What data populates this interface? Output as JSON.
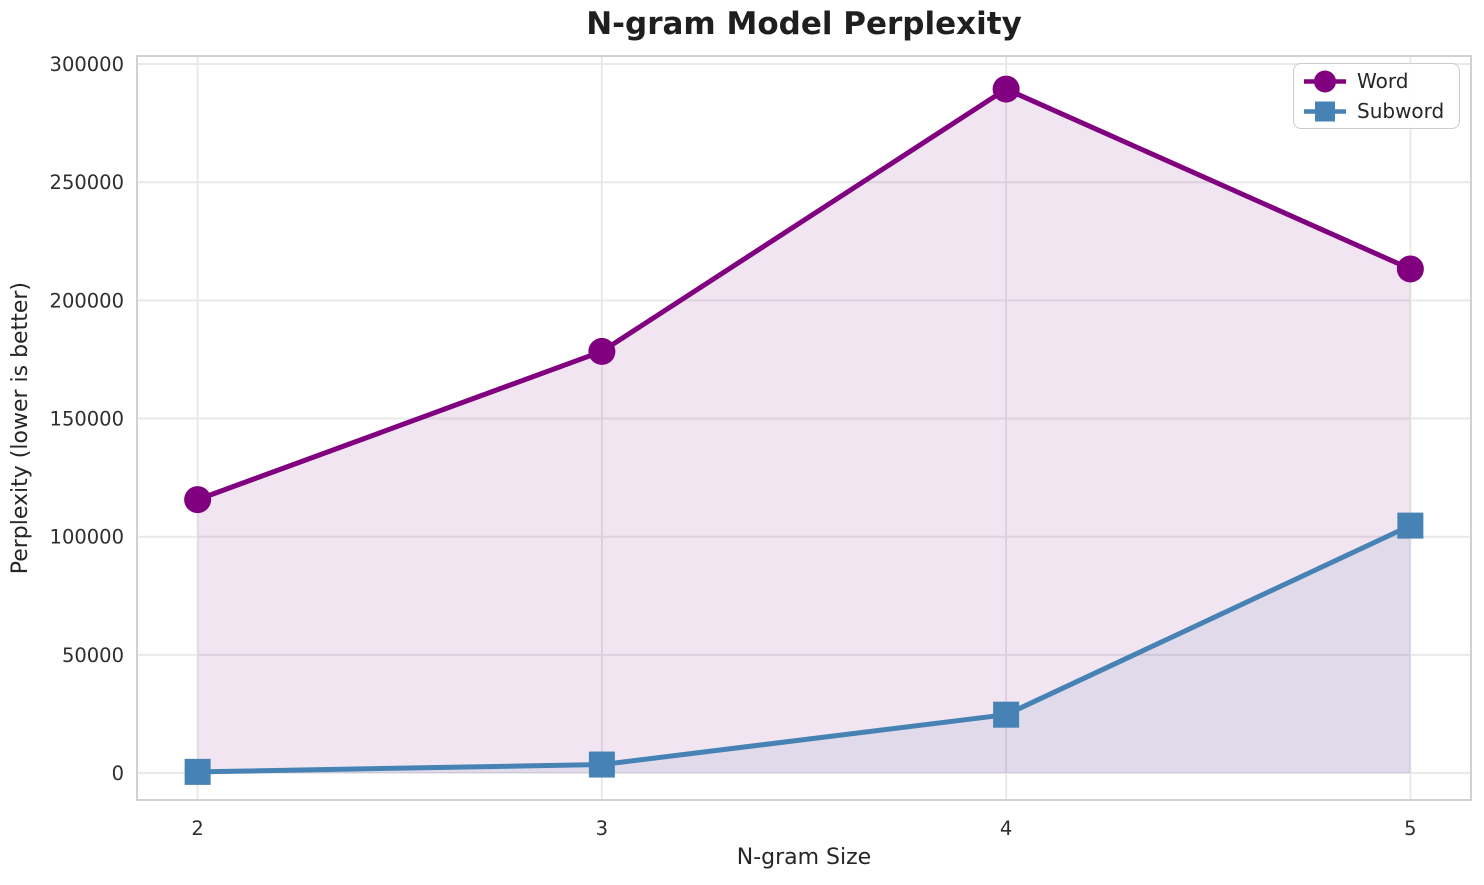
{
  "chart_data": {
    "type": "line",
    "title": "N-gram Model Perplexity",
    "xlabel": "N-gram Size",
    "ylabel": "Perplexity (lower is better)",
    "x": [
      2,
      3,
      4,
      5
    ],
    "series": [
      {
        "name": "Word",
        "marker": "circle",
        "color": "#800080",
        "fill_alpha": 0.1,
        "values": [
          115700,
          178400,
          289400,
          213300
        ]
      },
      {
        "name": "Subword",
        "marker": "square",
        "color": "#4682B4",
        "fill_alpha": 0.1,
        "values": [
          500,
          3600,
          24700,
          104700
        ]
      }
    ],
    "fill_baseline": 0,
    "xlim": [
      1.85,
      5.15
    ],
    "ylim": [
      -11400,
      303400
    ],
    "xticks": {
      "values": [
        2,
        3,
        4,
        5
      ],
      "labels": [
        "2",
        "3",
        "4",
        "5"
      ]
    },
    "yticks": {
      "values": [
        0,
        50000,
        100000,
        150000,
        200000,
        250000,
        300000
      ],
      "labels": [
        "0",
        "50000",
        "100000",
        "150000",
        "200000",
        "250000",
        "300000"
      ]
    },
    "grid": true,
    "legend_position": "upper right"
  },
  "styles": {
    "grid_color": "#e9e9e9",
    "spine_color": "#cccccc",
    "text_color": "#262626",
    "background": "#ffffff"
  }
}
